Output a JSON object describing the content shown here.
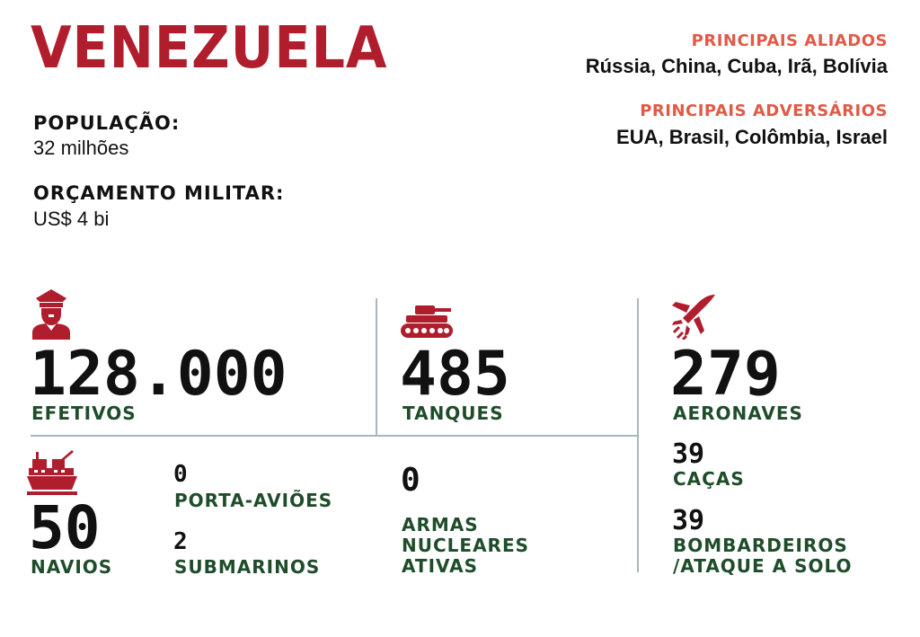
{
  "header": {
    "title": "VENEZUELA",
    "population_label": "POPULAÇÃO:",
    "population_value": "32 milhões",
    "budget_label": "ORÇAMENTO MILITAR:",
    "budget_value": "US$ 4 bi"
  },
  "relations": {
    "allies_label": "PRINCIPAIS ALIADOS",
    "allies_value": "Rússia, China, Cuba, Irã, Bolívia",
    "adversaries_label": "PRINCIPAIS ADVERSÁRIOS",
    "adversaries_value": "EUA, Brasil, Colômbia, Israel"
  },
  "stats": {
    "troops": {
      "value": "128.000",
      "label": "EFETIVOS",
      "icon": "soldier-icon"
    },
    "tanks": {
      "value": "485",
      "label": "TANQUES",
      "icon": "tank-icon"
    },
    "aircraft": {
      "value": "279",
      "label": "AERONAVES",
      "icon": "jet-icon"
    },
    "fighters": {
      "value": "39",
      "label": "CAÇAS"
    },
    "bombers": {
      "value": "39",
      "label_1": "BOMBARDEIROS",
      "label_2": "/ATAQUE A SOLO"
    },
    "ships": {
      "value": "50",
      "label": "NAVIOS",
      "icon": "warship-icon"
    },
    "carriers": {
      "value": "0",
      "label": "PORTA-AVIÕES"
    },
    "submarines": {
      "value": "2",
      "label": "SUBMARINOS"
    },
    "nukes": {
      "value": "0",
      "label_1": "ARMAS",
      "label_2": "NUCLEARES",
      "label_3": "ATIVAS"
    }
  },
  "colors": {
    "title": "#b01e2e",
    "heading": "#e05a47",
    "label": "#1f4d2b",
    "icon": "#b01e2e",
    "divider": "#aab6bd"
  }
}
